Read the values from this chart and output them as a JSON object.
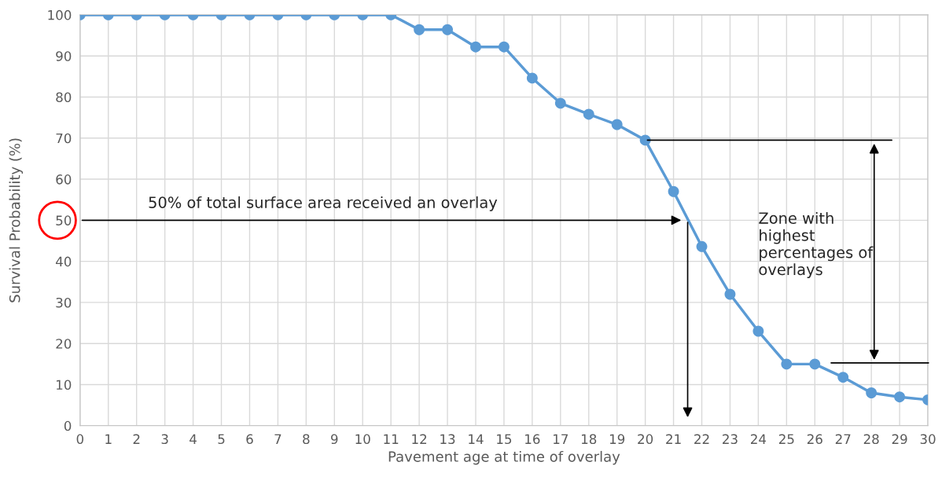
{
  "chart_data": {
    "type": "line",
    "xlabel": "Pavement age at time of overlay",
    "ylabel": "Survival Probability (%)",
    "x": [
      0,
      1,
      2,
      3,
      4,
      5,
      6,
      7,
      8,
      9,
      10,
      11,
      12,
      13,
      14,
      15,
      16,
      17,
      18,
      19,
      20,
      21,
      22,
      23,
      24,
      25,
      26,
      27,
      28,
      29,
      30
    ],
    "series": [
      {
        "color": "#5b9bd5",
        "values": [
          100,
          100,
          100,
          100,
          100,
          100,
          100,
          100,
          100,
          100,
          100,
          100,
          96.4,
          96.4,
          92.2,
          92.2,
          84.6,
          78.5,
          75.8,
          73.3,
          69.5,
          57,
          43.6,
          32,
          23,
          15,
          15,
          11.8,
          8,
          7,
          6.3
        ]
      }
    ],
    "xlim": [
      0,
      30
    ],
    "xticks": [
      0,
      1,
      2,
      3,
      4,
      5,
      6,
      7,
      8,
      9,
      10,
      11,
      12,
      13,
      14,
      15,
      16,
      17,
      18,
      19,
      20,
      21,
      22,
      23,
      24,
      25,
      26,
      27,
      28,
      29,
      30
    ],
    "ylim": [
      0,
      100
    ],
    "yticks": [
      0,
      10,
      20,
      30,
      40,
      50,
      60,
      70,
      80,
      90,
      100
    ],
    "grid": true,
    "marker": "circle",
    "line_style": "solid",
    "annotations": [
      "50% of total surface area received an overlay",
      "Zone with highest percentages of overlays"
    ]
  }
}
